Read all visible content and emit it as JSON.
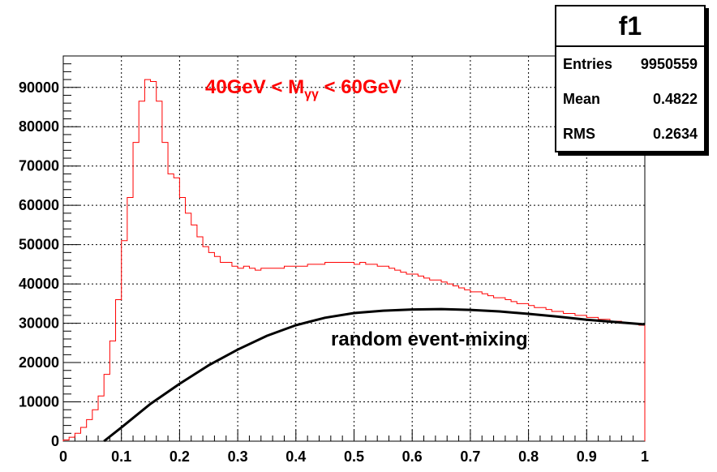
{
  "chart_data": {
    "type": "histogram",
    "title": "",
    "xlabel": "",
    "ylabel": "",
    "xlim": [
      0,
      1
    ],
    "ylim": [
      0,
      98000
    ],
    "grid": true,
    "x_ticks": [
      "0",
      "0.1",
      "0.2",
      "0.3",
      "0.4",
      "0.5",
      "0.6",
      "0.7",
      "0.8",
      "0.9",
      "1"
    ],
    "y_ticks": [
      "0",
      "10000",
      "20000",
      "30000",
      "40000",
      "50000",
      "60000",
      "70000",
      "80000",
      "90000"
    ],
    "series": [
      {
        "name": "",
        "color": "#ff0000",
        "bin_width": 0.01,
        "bin_start": 0.0,
        "values": [
          300,
          1000,
          2000,
          3500,
          5500,
          8000,
          11500,
          17000,
          25500,
          36000,
          51000,
          62000,
          76000,
          86500,
          92000,
          91500,
          86500,
          76000,
          68000,
          67000,
          62000,
          58000,
          55000,
          52000,
          49500,
          48000,
          47000,
          45500,
          45500,
          44500,
          44000,
          44500,
          44000,
          43500,
          44000,
          44000,
          44000,
          44000,
          44500,
          44500,
          44500,
          44500,
          45000,
          45000,
          45000,
          45500,
          45500,
          45500,
          45500,
          45500,
          45000,
          45500,
          45000,
          45000,
          44500,
          44500,
          44000,
          43500,
          43000,
          42500,
          42500,
          42000,
          41500,
          41000,
          41000,
          40500,
          40000,
          39500,
          39000,
          38500,
          38000,
          38000,
          37500,
          37000,
          36500,
          36500,
          36000,
          35500,
          35000,
          35000,
          34500,
          34000,
          34000,
          33500,
          33000,
          33000,
          32500,
          32500,
          32000,
          32000,
          31500,
          31500,
          31000,
          31000,
          30500,
          30500,
          30000,
          30000,
          29800,
          29500
        ]
      },
      {
        "name": "",
        "color": "#000000",
        "type": "line",
        "x": [
          0.07,
          0.1,
          0.15,
          0.2,
          0.25,
          0.3,
          0.35,
          0.4,
          0.45,
          0.5,
          0.55,
          0.6,
          0.65,
          0.7,
          0.75,
          0.8,
          0.85,
          0.9,
          0.95,
          1.0
        ],
        "y": [
          0,
          3500,
          9500,
          14600,
          19300,
          23300,
          26800,
          29500,
          31400,
          32600,
          33200,
          33500,
          33600,
          33400,
          33000,
          32400,
          31700,
          30900,
          30300,
          29700
        ]
      }
    ],
    "annotations": [
      {
        "text": "random event-mixing",
        "color": "#000000"
      }
    ]
  },
  "plot_label": {
    "prefix": "40GeV < M",
    "subscript": "γγ",
    "suffix": " < 60GeV",
    "color": "#ff0000"
  },
  "stats": {
    "title": "f1",
    "rows": [
      {
        "label": "Entries",
        "value": "9950559"
      },
      {
        "label": "Mean",
        "value": "0.4822"
      },
      {
        "label": "RMS",
        "value": "0.2634"
      }
    ]
  }
}
